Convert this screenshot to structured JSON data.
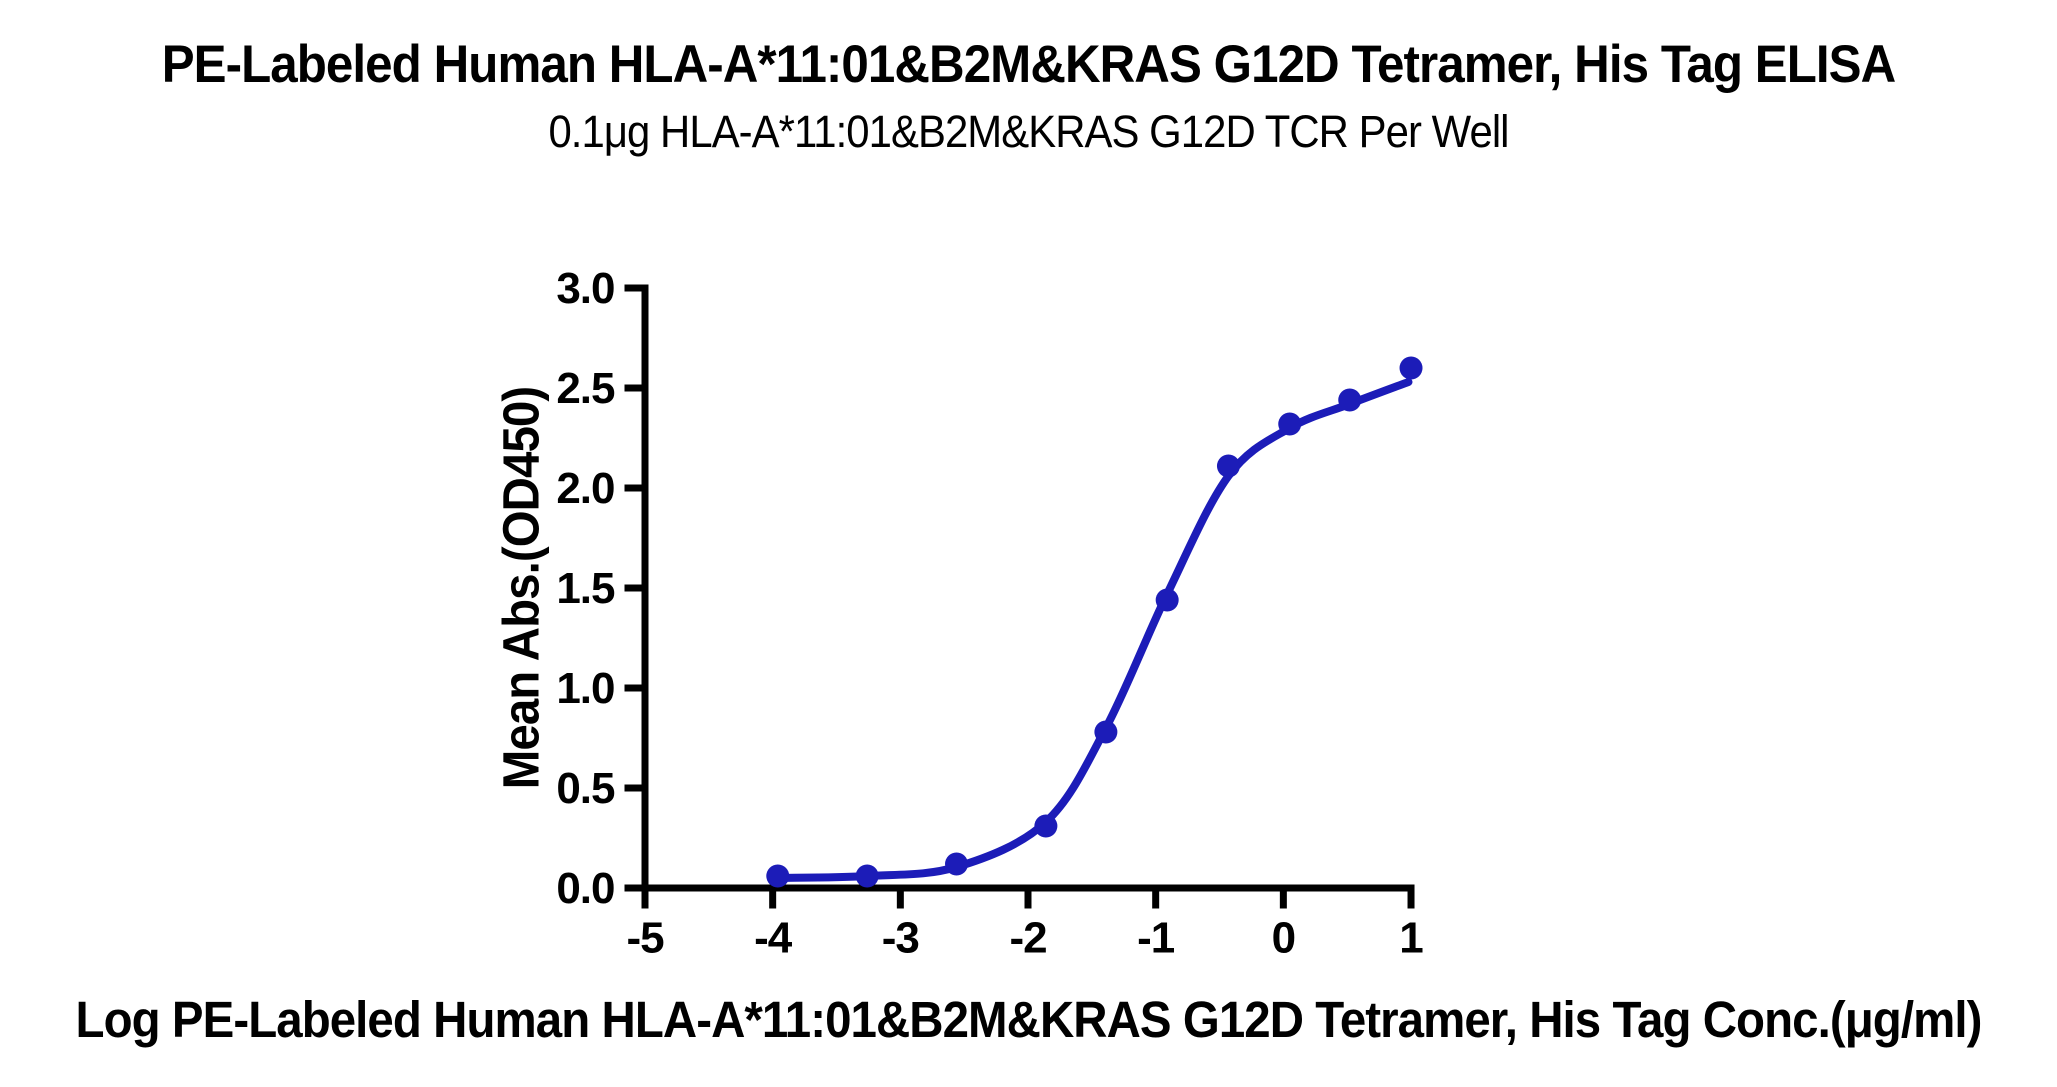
{
  "chart_data": {
    "type": "scatter",
    "title": "PE-Labeled Human HLA-A*11:01&B2M&KRAS G12D Tetramer, His Tag ELISA",
    "subtitle": "0.1μg HLA-A*11:01&B2M&KRAS G12D TCR Per Well",
    "xlabel": "Log PE-Labeled Human HLA-A*11:01&B2M&KRAS G12D Tetramer, His Tag Conc.(μg/ml)",
    "ylabel": "Mean Abs.(OD450)",
    "xlim": [
      -5,
      1
    ],
    "ylim": [
      0,
      3
    ],
    "x_tick_values": [
      -5,
      -4,
      -3,
      -2,
      -1,
      0,
      1
    ],
    "x_tick_labels": [
      "-5",
      "-4",
      "-3",
      "-2",
      "-1",
      "0",
      "1"
    ],
    "y_tick_values": [
      0,
      0.5,
      1,
      1.5,
      2,
      2.5,
      3
    ],
    "y_tick_labels": [
      "0.0",
      "0.5",
      "1.0",
      "1.5",
      "2.0",
      "2.5",
      "3.0"
    ],
    "grid": false,
    "legend": "none",
    "series": [
      {
        "name": "PE-Labeled Human HLA-A*11:01&B2M&KRAS G12D Tetramer, His Tag",
        "x": [
          -3.96,
          -3.26,
          -2.56,
          -1.86,
          -1.39,
          -0.91,
          -0.43,
          0.05,
          0.52,
          1.0
        ],
        "y": [
          0.06,
          0.06,
          0.12,
          0.31,
          0.78,
          1.44,
          2.11,
          2.32,
          2.44,
          2.6
        ]
      }
    ],
    "fit_curve": {
      "name": "4PL sigmoidal fit",
      "x": [
        -3.96,
        -3.26,
        -2.56,
        -1.86,
        -1.39,
        -0.91,
        -0.43,
        0.05,
        0.52,
        0.98
      ],
      "y": [
        0.05,
        0.06,
        0.105,
        0.33,
        0.8,
        1.47,
        2.06,
        2.3,
        2.42,
        2.53
      ]
    },
    "colors": {
      "accent": "#1c1cb8",
      "axis": "#000000",
      "background": "#ffffff"
    }
  }
}
